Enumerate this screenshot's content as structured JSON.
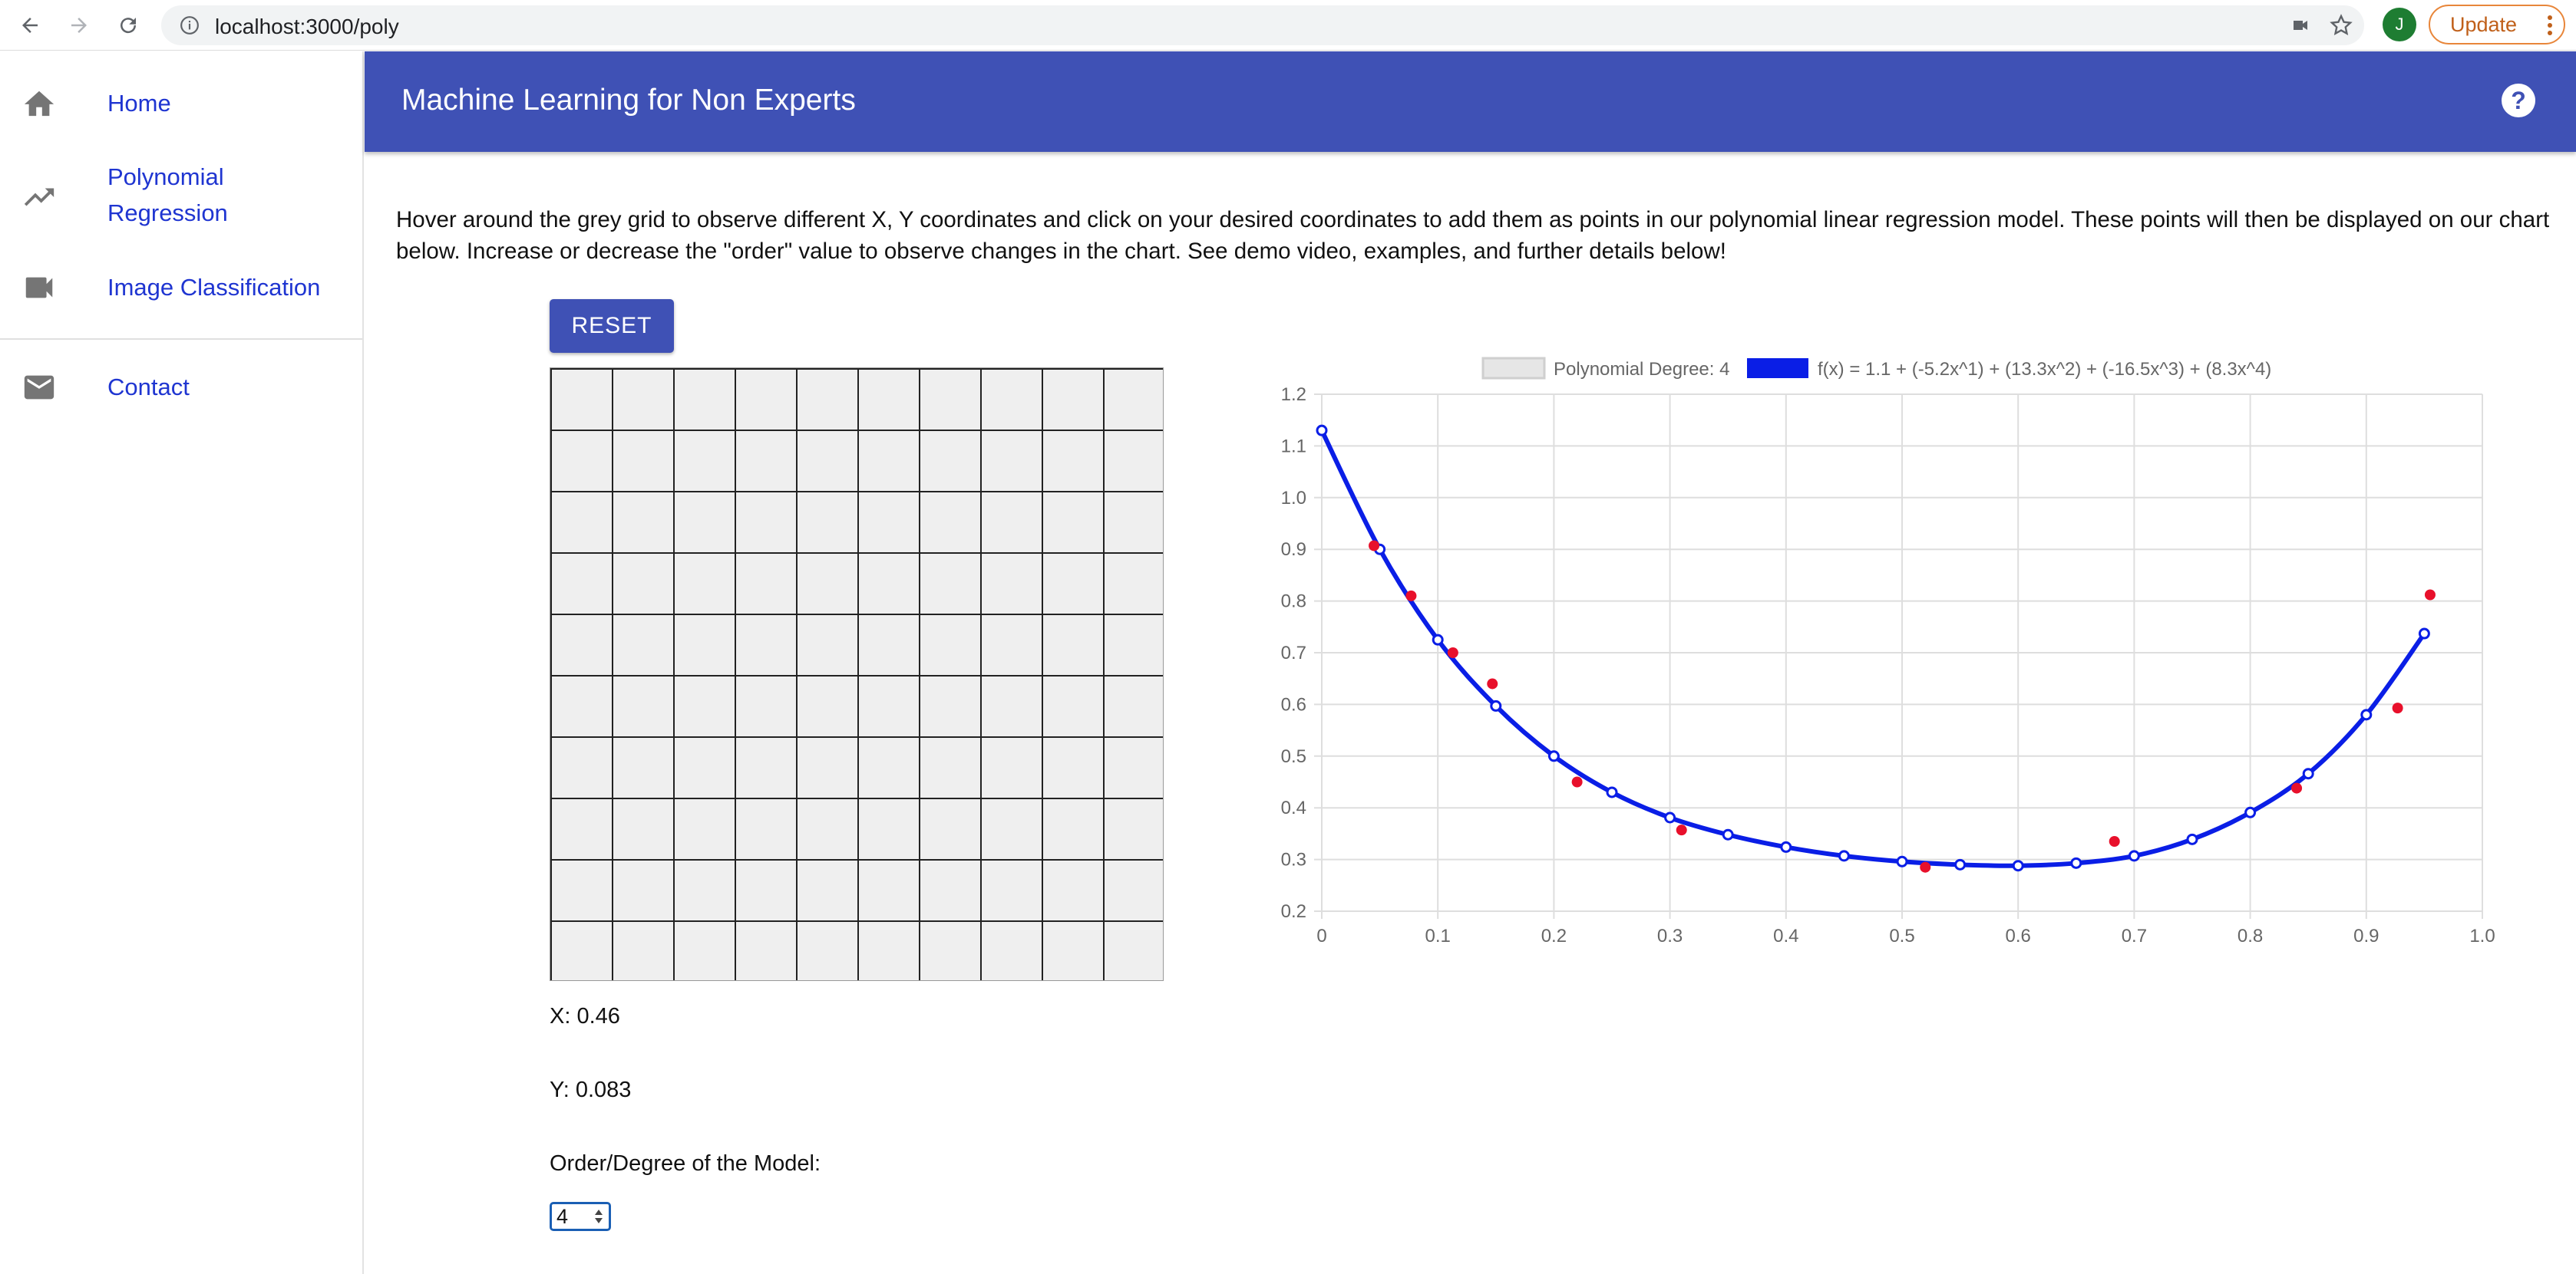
{
  "browser": {
    "url": "localhost:3000/poly",
    "profile_initial": "J",
    "update_label": "Update"
  },
  "sidebar": {
    "items": [
      {
        "label": "Home",
        "icon": "home-icon"
      },
      {
        "label": "Polynomial Regression",
        "label_line1": "Polynomial",
        "label_line2": "Regression",
        "icon": "trending-up-icon"
      },
      {
        "label": "Image Classification",
        "icon": "videocam-icon"
      },
      {
        "label": "Contact",
        "icon": "mail-icon"
      }
    ]
  },
  "appbar": {
    "title": "Machine Learning for Non Experts",
    "help_label": "?"
  },
  "main": {
    "instructions": "Hover around the grey grid to observe different X, Y coordinates and click on your desired coordinates to add them as points in our polynomial linear regression model. These points will then be displayed on our chart below. Increase or decrease the \"order\" value to observe changes in the chart. See demo video, examples, and further details below!",
    "reset_label": "RESET",
    "x_readout": "X: 0.46",
    "y_readout": "Y: 0.083",
    "order_label": "Order/Degree of the Model:",
    "order_value": "4"
  },
  "colors": {
    "appbar": "#3f51b5",
    "link": "#1f35d1",
    "curve": "#0a1ee6",
    "points": "#e8102b",
    "grid_bg": "#efefef"
  },
  "chart_data": {
    "type": "line",
    "legend": [
      {
        "label": "Polynomial Degree: 4",
        "swatch": "#e6e6e6"
      },
      {
        "label": "f(x) = 1.1 + (-5.2x^1) + (13.3x^2) + (-16.5x^3) + (8.3x^4)",
        "swatch": "#0a1ee6"
      }
    ],
    "xlim": [
      0,
      1.0
    ],
    "ylim": [
      0.2,
      1.2
    ],
    "x_ticks": [
      "0",
      "0.1",
      "0.2",
      "0.3",
      "0.4",
      "0.5",
      "0.6",
      "0.7",
      "0.8",
      "0.9",
      "1.0"
    ],
    "y_ticks": [
      "0.2",
      "0.3",
      "0.4",
      "0.5",
      "0.6",
      "0.7",
      "0.8",
      "0.9",
      "1.0",
      "1.1",
      "1.2"
    ],
    "grid": true,
    "series": [
      {
        "type": "line",
        "x": [
          0,
          0.05,
          0.1,
          0.15,
          0.2,
          0.25,
          0.3,
          0.35,
          0.4,
          0.45,
          0.5,
          0.55,
          0.6,
          0.65,
          0.7,
          0.75,
          0.8,
          0.85,
          0.9,
          0.95
        ],
        "y": [
          1.13,
          0.9,
          0.725,
          0.597,
          0.5,
          0.43,
          0.381,
          0.348,
          0.324,
          0.307,
          0.296,
          0.29,
          0.288,
          0.293,
          0.307,
          0.339,
          0.391,
          0.466,
          0.58,
          0.737
        ]
      },
      {
        "type": "scatter",
        "x": [
          0.045,
          0.077,
          0.113,
          0.147,
          0.22,
          0.31,
          0.52,
          0.683,
          0.84,
          0.927,
          0.955
        ],
        "y": [
          0.907,
          0.81,
          0.7,
          0.64,
          0.45,
          0.357,
          0.285,
          0.335,
          0.438,
          0.593,
          0.812
        ]
      }
    ]
  }
}
